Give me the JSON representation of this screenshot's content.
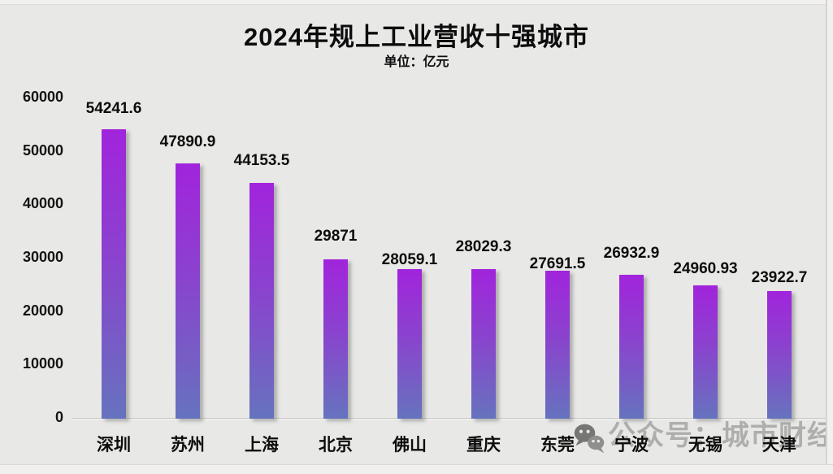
{
  "page": {
    "title": "2024年规上工业营收十强城市",
    "subtitle": "单位：亿元"
  },
  "watermark": {
    "text": "公众号：城市财经",
    "icon": "wechat-icon"
  },
  "colors": {
    "background": "#E8E8E6",
    "bar_top": "#A124DC",
    "bar_bottom": "#6673BE",
    "text": "#111111",
    "axis_line": "#C6C6C4",
    "watermark_text": "#A0A09E",
    "edge_strip": "#F2F1EF"
  },
  "chart_data": {
    "type": "bar",
    "title": "2024年规上工业营收十强城市",
    "subtitle": "单位：亿元",
    "unit": "亿元",
    "categories": [
      "深圳",
      "苏州",
      "上海",
      "北京",
      "佛山",
      "重庆",
      "东莞",
      "宁波",
      "无锡",
      "天津"
    ],
    "values": [
      54241.6,
      47890.9,
      44153.5,
      29871,
      28059.1,
      28029.3,
      27691.5,
      26932.9,
      24960.93,
      23922.7
    ],
    "value_labels": [
      "54241.6",
      "47890.9",
      "44153.5",
      "29871",
      "28059.1",
      "28029.3",
      "27691.5",
      "26932.9",
      "24960.93",
      "23922.7"
    ],
    "xlabel": "",
    "ylabel": "",
    "ylim": [
      0,
      60000
    ],
    "ytick_interval": 10000,
    "yticks": [
      "0",
      "10000",
      "20000",
      "30000",
      "40000",
      "50000",
      "60000"
    ],
    "grid": false,
    "legend": "none",
    "bar_color_gradient": [
      "#A124DC",
      "#6673BE"
    ]
  }
}
